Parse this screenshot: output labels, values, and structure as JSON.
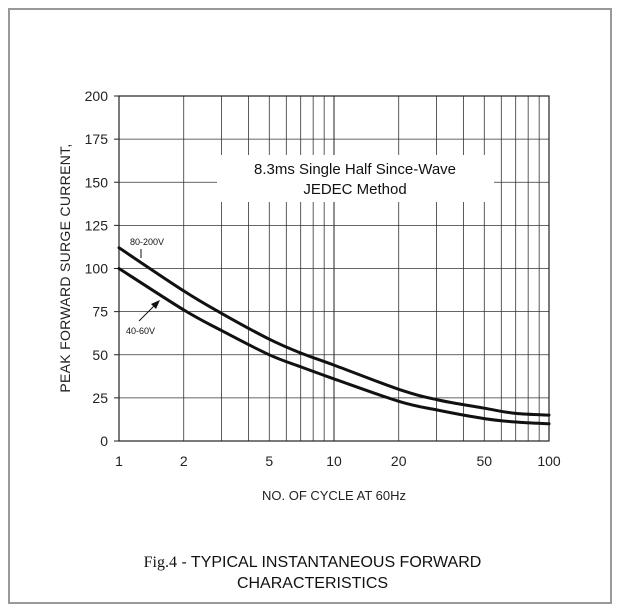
{
  "chart_data": {
    "type": "line",
    "ylabel": "PEAK FORWARD SURGE CURRENT,",
    "xlabel": "NO. OF CYCLE AT 60Hz",
    "x_scale": "log",
    "xlim": [
      1,
      100
    ],
    "ylim": [
      0,
      200
    ],
    "x_ticks": [
      "1",
      "2",
      "5",
      "10",
      "20",
      "50",
      "100"
    ],
    "y_ticks": [
      "0",
      "25",
      "50",
      "75",
      "100",
      "125",
      "150",
      "175",
      "200"
    ],
    "grid": true,
    "annotation": [
      "8.3ms Single Half Since-Wave",
      "JEDEC Method"
    ],
    "series": [
      {
        "name": "80-200V",
        "x": [
          1,
          2,
          3,
          5,
          7,
          10,
          20,
          30,
          50,
          70,
          100
        ],
        "y": [
          112,
          87,
          74,
          59,
          51,
          44,
          30,
          24,
          19,
          16,
          15
        ]
      },
      {
        "name": "40-60V",
        "x": [
          1,
          2,
          3,
          5,
          7,
          10,
          20,
          30,
          50,
          70,
          100
        ],
        "y": [
          100,
          76,
          64,
          50,
          43,
          36,
          23,
          18,
          13,
          11,
          10
        ]
      }
    ],
    "caption_fig": "Fig.4",
    "caption_text": " - TYPICAL INSTANTANEOUS FORWARD",
    "caption_line2": "CHARACTERISTICS"
  }
}
